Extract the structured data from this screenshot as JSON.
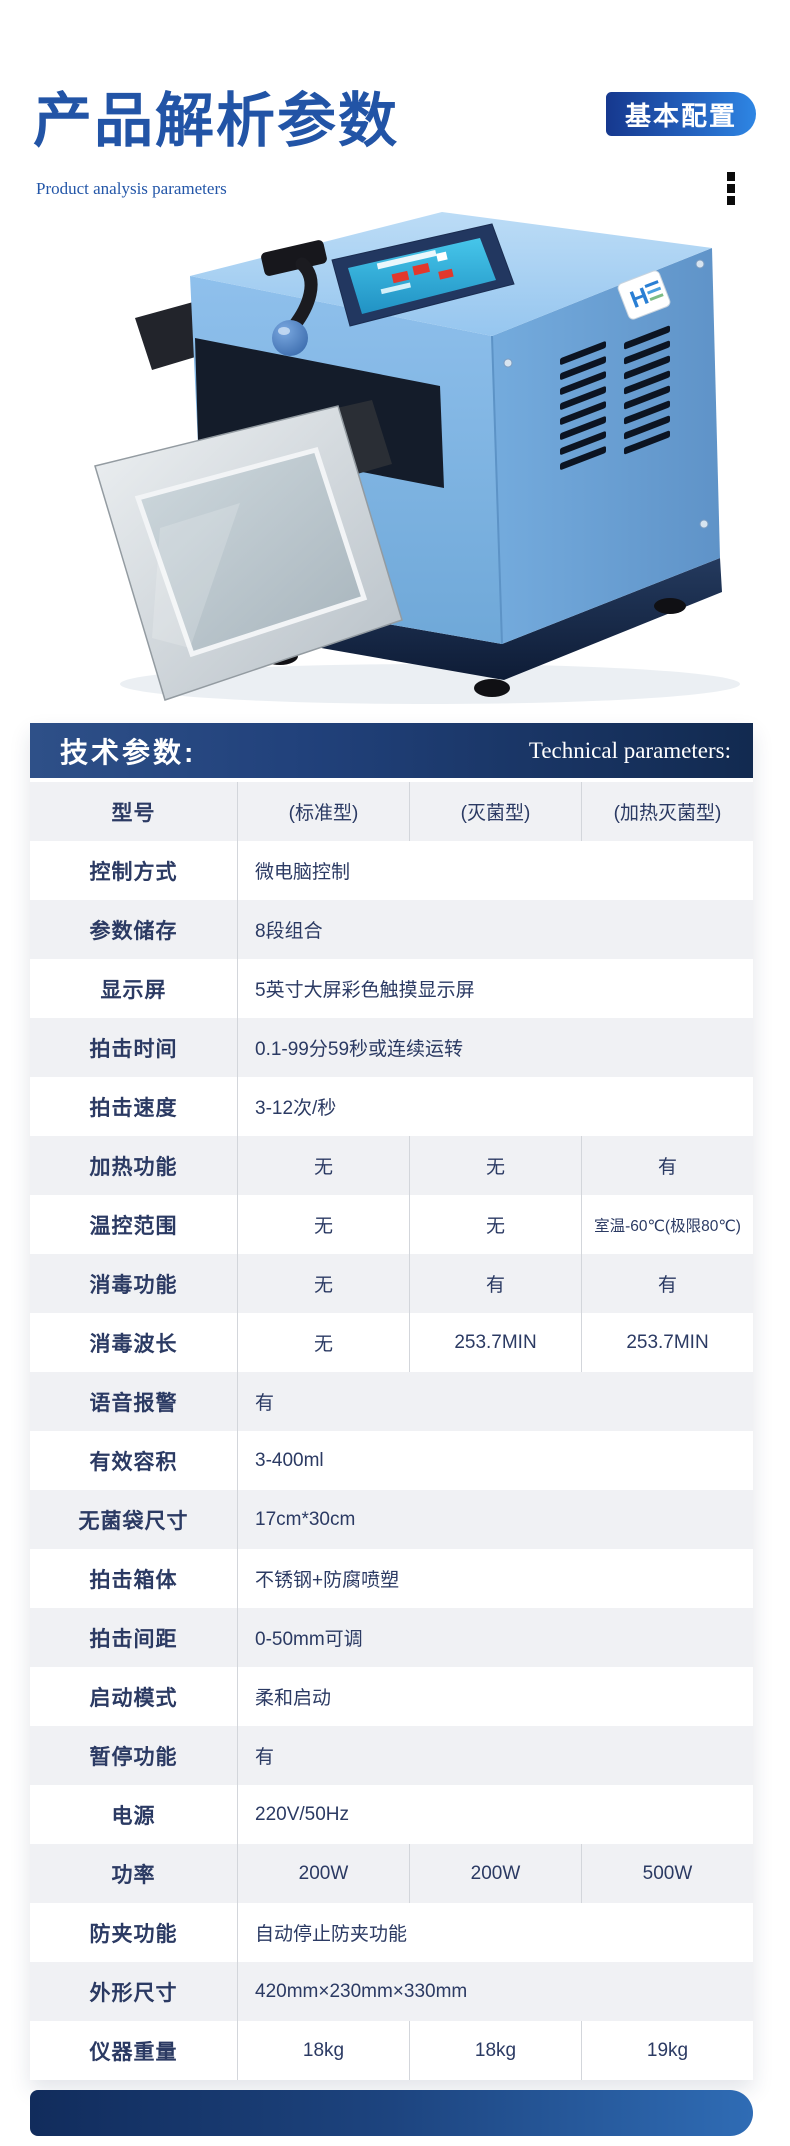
{
  "header": {
    "title": "产品解析参数",
    "subtitle": "Product analysis parameters",
    "badge_label": "基本配置"
  },
  "icons": {
    "more_options": "vertical-ellipsis-icon",
    "product_photo": "blue-lab-paddle-blender-with-open-steel-door"
  },
  "colors": {
    "title_blue": "#2254a6",
    "badge_gradient": [
      "#16388e",
      "#2e86e4"
    ],
    "header_bar_gradient": [
      "#2e5088",
      "#122a50"
    ],
    "row_gray": "#f0f1f4",
    "text_navy": "#2b3a63",
    "machine_blue": "#85b9e8",
    "footer_gradient": [
      "#112c5c",
      "#2f6cb5"
    ]
  },
  "spec_header": {
    "title_cn": "技术参数:",
    "title_en": "Technical parameters:"
  },
  "spec_table": {
    "rows": [
      {
        "label": "型号",
        "values": [
          "(标准型)",
          "(灭菌型)",
          "(加热灭菌型)"
        ]
      },
      {
        "label": "控制方式",
        "values": [
          "微电脑控制"
        ]
      },
      {
        "label": "参数储存",
        "values": [
          "8段组合"
        ]
      },
      {
        "label": "显示屏",
        "values": [
          "5英寸大屏彩色触摸显示屏"
        ]
      },
      {
        "label": "拍击时间",
        "values": [
          "0.1-99分59秒或连续运转"
        ]
      },
      {
        "label": "拍击速度",
        "values": [
          "3-12次/秒"
        ]
      },
      {
        "label": "加热功能",
        "values": [
          "无",
          "无",
          "有"
        ]
      },
      {
        "label": "温控范围",
        "values": [
          "无",
          "无",
          "室温-60℃(极限80℃)"
        ]
      },
      {
        "label": "消毒功能",
        "values": [
          "无",
          "有",
          "有"
        ]
      },
      {
        "label": "消毒波长",
        "values": [
          "无",
          "253.7MIN",
          "253.7MIN"
        ]
      },
      {
        "label": "语音报警",
        "values": [
          "有"
        ]
      },
      {
        "label": "有效容积",
        "values": [
          "3-400ml"
        ]
      },
      {
        "label": "无菌袋尺寸",
        "values": [
          "17cm*30cm"
        ]
      },
      {
        "label": "拍击箱体",
        "values": [
          "不锈钢+防腐喷塑"
        ]
      },
      {
        "label": "拍击间距",
        "values": [
          "0-50mm可调"
        ]
      },
      {
        "label": "启动模式",
        "values": [
          "柔和启动"
        ]
      },
      {
        "label": "暂停功能",
        "values": [
          "有"
        ]
      },
      {
        "label": "电源",
        "values": [
          "220V/50Hz"
        ]
      },
      {
        "label": "功率",
        "values": [
          "200W",
          "200W",
          "500W"
        ]
      },
      {
        "label": "防夹功能",
        "values": [
          "自动停止防夹功能"
        ]
      },
      {
        "label": "外形尺寸",
        "values": [
          "420mm×230mm×330mm"
        ]
      },
      {
        "label": "仪器重量",
        "values": [
          "18kg",
          "18kg",
          "19kg"
        ]
      }
    ]
  }
}
